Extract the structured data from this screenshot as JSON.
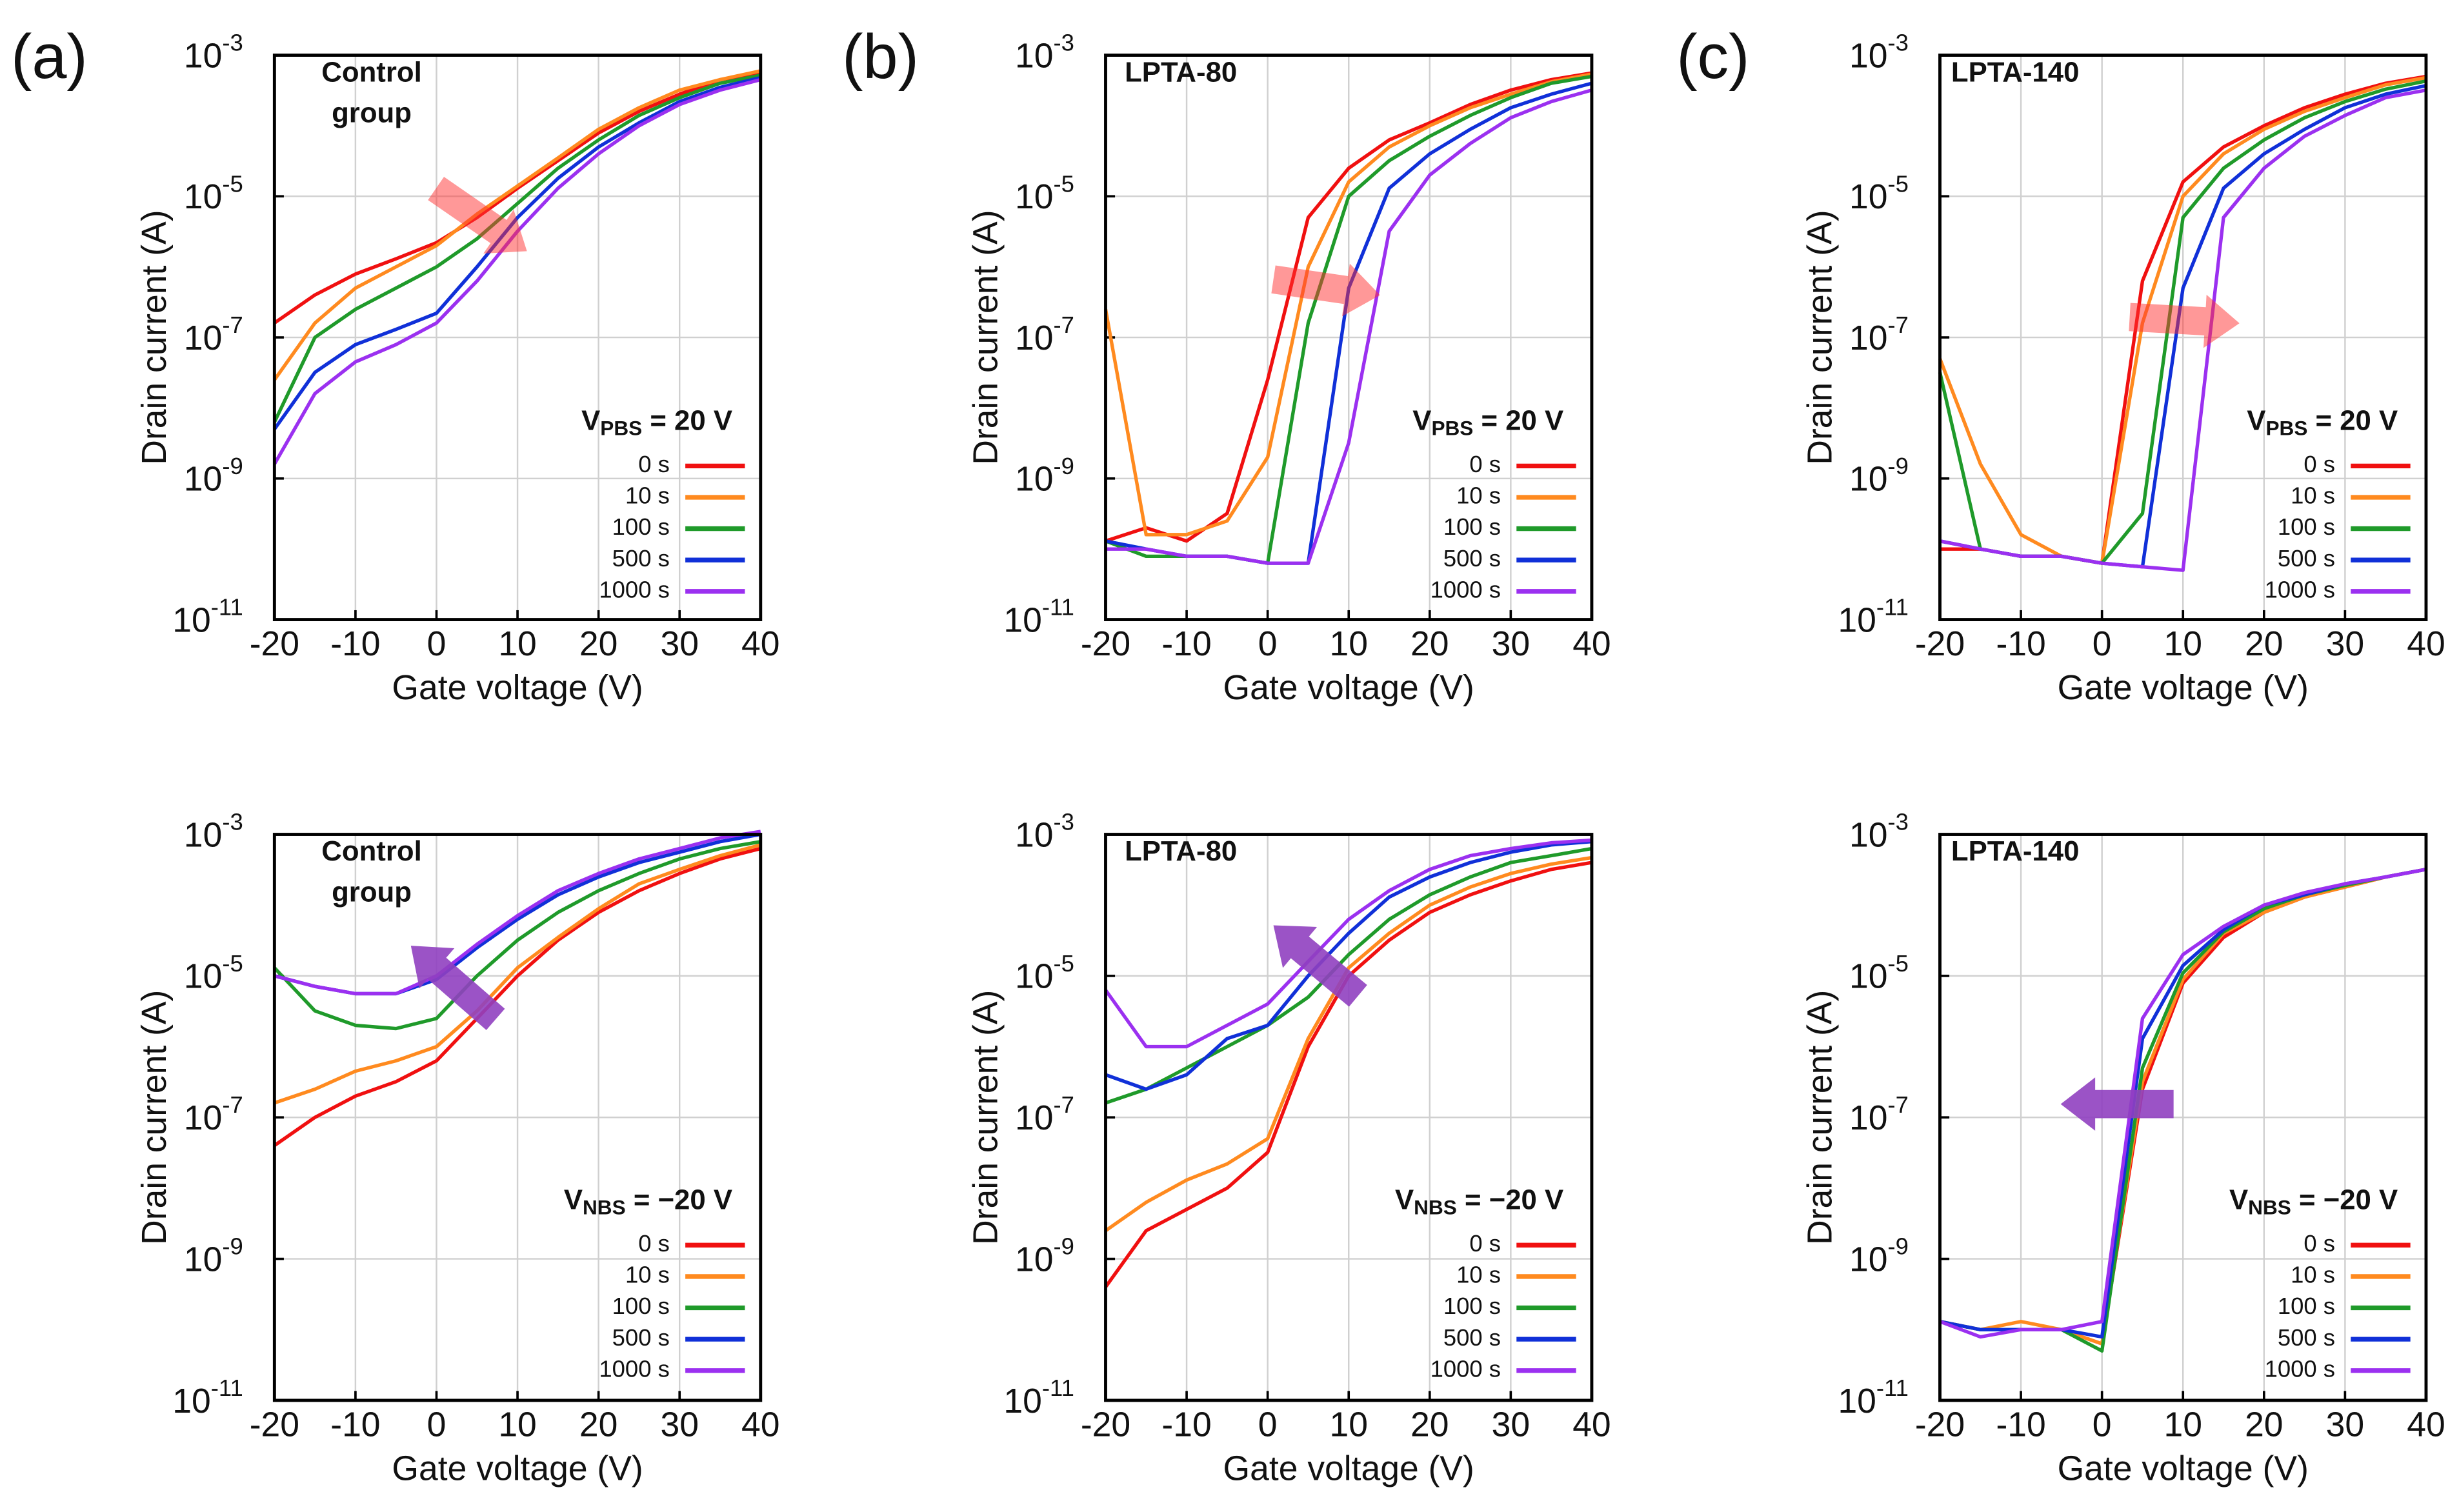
{
  "chart_data": [
    {
      "type": "line",
      "panel_label": "(a)",
      "annotation": [
        "Control",
        "group"
      ],
      "stress_label": {
        "main": "V",
        "sub": "PBS",
        "rest": " = 20 V"
      },
      "x_label": "Gate voltage (V)",
      "y_label": "Drain current (A)",
      "log_y": true,
      "grid": true,
      "xlim": [
        -20,
        40
      ],
      "xticks": [
        -20,
        -10,
        0,
        10,
        20,
        30,
        40
      ],
      "ylim": [
        1e-11,
        0.001
      ],
      "yticks": [
        {
          "value": 0.001,
          "label": "10",
          "exponent": "-3"
        },
        {
          "value": 1e-05,
          "label": "10",
          "exponent": "-5"
        },
        {
          "value": 1e-07,
          "label": "10",
          "exponent": "-7"
        },
        {
          "value": 1e-09,
          "label": "10",
          "exponent": "-9"
        },
        {
          "value": 1e-11,
          "label": "10",
          "exponent": "-11"
        }
      ],
      "x": [
        -20,
        -15,
        -10,
        -5,
        0,
        5,
        10,
        15,
        20,
        25,
        30,
        35,
        40
      ],
      "series": [
        {
          "name": "0 s",
          "color": "#f01010",
          "values": [
            1.6e-07,
            4e-07,
            7.9e-07,
            1.3e-06,
            2.2e-06,
            5e-06,
            1.3e-05,
            3.2e-05,
            7.9e-05,
            0.00016,
            0.00028,
            0.00045,
            0.00056
          ]
        },
        {
          "name": "10 s",
          "color": "#ff8a1f",
          "values": [
            2.5e-08,
            1.6e-07,
            5e-07,
            1e-06,
            2e-06,
            5.6e-06,
            1.4e-05,
            3.5e-05,
            8.9e-05,
            0.00018,
            0.00032,
            0.00045,
            0.0006
          ]
        },
        {
          "name": "100 s",
          "color": "#1f9a2a",
          "values": [
            6.3e-09,
            1e-07,
            2.5e-07,
            5e-07,
            1e-06,
            2.5e-06,
            7.9e-06,
            2.5e-05,
            6.3e-05,
            0.00014,
            0.00025,
            0.0004,
            0.00052
          ]
        },
        {
          "name": "500 s",
          "color": "#1030d8",
          "values": [
            5e-09,
            3.2e-08,
            7.9e-08,
            1.3e-07,
            2.2e-07,
            1e-06,
            5e-06,
            1.8e-05,
            5e-05,
            0.00011,
            0.00022,
            0.00035,
            0.00048
          ]
        },
        {
          "name": "1000 s",
          "color": "#9b30f0",
          "values": [
            1.6e-09,
            1.6e-08,
            4.5e-08,
            7.9e-08,
            1.6e-07,
            6.3e-07,
            3.2e-06,
            1.3e-05,
            4e-05,
            0.0001,
            0.0002,
            0.00032,
            0.00045
          ]
        }
      ]
    },
    {
      "type": "line",
      "panel_label": "(b)",
      "annotation": [
        "LPTA-80"
      ],
      "stress_label": {
        "main": "V",
        "sub": "PBS",
        "rest": " = 20 V"
      },
      "x_label": "Gate voltage (V)",
      "y_label": "Drain current (A)",
      "log_y": true,
      "grid": true,
      "xlim": [
        -20,
        40
      ],
      "xticks": [
        -20,
        -10,
        0,
        10,
        20,
        30,
        40
      ],
      "ylim": [
        1e-11,
        0.001
      ],
      "yticks": [
        {
          "value": 0.001,
          "label": "10",
          "exponent": "-3"
        },
        {
          "value": 1e-05,
          "label": "10",
          "exponent": "-5"
        },
        {
          "value": 1e-07,
          "label": "10",
          "exponent": "-7"
        },
        {
          "value": 1e-09,
          "label": "10",
          "exponent": "-9"
        },
        {
          "value": 1e-11,
          "label": "10",
          "exponent": "-11"
        }
      ],
      "x": [
        -20,
        -15,
        -10,
        -5,
        0,
        5,
        10,
        15,
        20,
        25,
        30,
        35,
        40
      ],
      "series": [
        {
          "name": "0 s",
          "color": "#f01010",
          "values": [
            1.3e-10,
            2e-10,
            1.3e-10,
            3.2e-10,
            2.5e-08,
            5e-06,
            2.5e-05,
            6.3e-05,
            0.00011,
            0.0002,
            0.00032,
            0.00045,
            0.00056
          ]
        },
        {
          "name": "10 s",
          "color": "#ff8a1f",
          "values": [
            2.5e-07,
            1.6e-10,
            1.6e-10,
            2.5e-10,
            2e-09,
            1e-06,
            1.6e-05,
            5e-05,
            0.0001,
            0.00018,
            0.00028,
            0.00042,
            0.00054
          ]
        },
        {
          "name": "100 s",
          "color": "#1f9a2a",
          "values": [
            1.3e-10,
            7.9e-11,
            7.9e-11,
            7.9e-11,
            6.3e-11,
            1.6e-07,
            1e-05,
            3.2e-05,
            7.1e-05,
            0.00014,
            0.00025,
            0.0004,
            0.0005
          ]
        },
        {
          "name": "500 s",
          "color": "#1030d8",
          "values": [
            1.3e-10,
            1e-10,
            7.9e-11,
            7.9e-11,
            6.3e-11,
            6.3e-11,
            5e-07,
            1.3e-05,
            4e-05,
            8.9e-05,
            0.00018,
            0.00028,
            0.0004
          ]
        },
        {
          "name": "1000 s",
          "color": "#9b30f0",
          "values": [
            1e-10,
            1e-10,
            7.9e-11,
            7.9e-11,
            6.3e-11,
            6.3e-11,
            3.2e-09,
            3.2e-06,
            2e-05,
            5.6e-05,
            0.00013,
            0.00022,
            0.00032
          ]
        }
      ]
    },
    {
      "type": "line",
      "panel_label": "(c)",
      "annotation": [
        "LPTA-140"
      ],
      "stress_label": {
        "main": "V",
        "sub": "PBS",
        "rest": " = 20 V"
      },
      "x_label": "Gate voltage (V)",
      "y_label": "Drain current (A)",
      "log_y": true,
      "grid": true,
      "xlim": [
        -20,
        40
      ],
      "xticks": [
        -20,
        -10,
        0,
        10,
        20,
        30,
        40
      ],
      "ylim": [
        1e-11,
        0.001
      ],
      "yticks": [
        {
          "value": 0.001,
          "label": "10",
          "exponent": "-3"
        },
        {
          "value": 1e-05,
          "label": "10",
          "exponent": "-5"
        },
        {
          "value": 1e-07,
          "label": "10",
          "exponent": "-7"
        },
        {
          "value": 1e-09,
          "label": "10",
          "exponent": "-9"
        },
        {
          "value": 1e-11,
          "label": "10",
          "exponent": "-11"
        }
      ],
      "x": [
        -20,
        -15,
        -10,
        -5,
        0,
        5,
        10,
        15,
        20,
        25,
        30,
        35,
        40
      ],
      "series": [
        {
          "name": "0 s",
          "color": "#f01010",
          "values": [
            1e-10,
            1e-10,
            7.9e-11,
            7.9e-11,
            6.3e-11,
            6.3e-07,
            1.6e-05,
            5e-05,
            0.0001,
            0.00018,
            0.00028,
            0.0004,
            0.0005
          ]
        },
        {
          "name": "10 s",
          "color": "#ff8a1f",
          "values": [
            5e-08,
            1.6e-09,
            1.6e-10,
            7.9e-11,
            6.3e-11,
            1.6e-07,
            1e-05,
            4e-05,
            8.9e-05,
            0.00016,
            0.00025,
            0.00038,
            0.00048
          ]
        },
        {
          "name": "100 s",
          "color": "#1f9a2a",
          "values": [
            3.2e-08,
            1e-10,
            7.9e-11,
            7.9e-11,
            6.3e-11,
            3.2e-10,
            5e-06,
            2.5e-05,
            6.3e-05,
            0.00013,
            0.00022,
            0.00033,
            0.00043
          ]
        },
        {
          "name": "500 s",
          "color": "#1030d8",
          "values": [
            1.3e-10,
            1e-10,
            7.9e-11,
            7.9e-11,
            6.3e-11,
            5.6e-11,
            5e-07,
            1.3e-05,
            4e-05,
            8.9e-05,
            0.00018,
            0.00028,
            0.00037
          ]
        },
        {
          "name": "1000 s",
          "color": "#9b30f0",
          "values": [
            1.3e-10,
            1e-10,
            7.9e-11,
            7.9e-11,
            6.3e-11,
            5.6e-11,
            5e-11,
            5e-06,
            2.5e-05,
            7.1e-05,
            0.00014,
            0.00025,
            0.00032
          ]
        }
      ]
    },
    {
      "type": "line",
      "annotation": [
        "Control",
        "group"
      ],
      "stress_label": {
        "main": "V",
        "sub": "NBS",
        "rest": " = −20 V"
      },
      "x_label": "Gate voltage (V)",
      "y_label": "Drain current (A)",
      "log_y": true,
      "grid": true,
      "xlim": [
        -20,
        40
      ],
      "xticks": [
        -20,
        -10,
        0,
        10,
        20,
        30,
        40
      ],
      "ylim": [
        1e-11,
        0.001
      ],
      "yticks": [
        {
          "value": 0.001,
          "label": "10",
          "exponent": "-3"
        },
        {
          "value": 1e-05,
          "label": "10",
          "exponent": "-5"
        },
        {
          "value": 1e-07,
          "label": "10",
          "exponent": "-7"
        },
        {
          "value": 1e-09,
          "label": "10",
          "exponent": "-9"
        },
        {
          "value": 1e-11,
          "label": "10",
          "exponent": "-11"
        }
      ],
      "x": [
        -20,
        -15,
        -10,
        -5,
        0,
        5,
        10,
        15,
        20,
        25,
        30,
        35,
        40
      ],
      "series": [
        {
          "name": "0 s",
          "color": "#f01010",
          "values": [
            4e-08,
            1e-07,
            2e-07,
            3.2e-07,
            6.3e-07,
            2.5e-06,
            1e-05,
            3.2e-05,
            7.9e-05,
            0.00016,
            0.00028,
            0.00045,
            0.00063
          ]
        },
        {
          "name": "10 s",
          "color": "#ff8a1f",
          "values": [
            1.6e-07,
            2.5e-07,
            4.5e-07,
            6.3e-07,
            1e-06,
            3.2e-06,
            1.3e-05,
            3.5e-05,
            8.9e-05,
            0.0002,
            0.00032,
            0.0005,
            0.00071
          ]
        },
        {
          "name": "100 s",
          "color": "#1f9a2a",
          "values": [
            1.3e-05,
            3.2e-06,
            2e-06,
            1.8e-06,
            2.5e-06,
            1e-05,
            3.2e-05,
            7.9e-05,
            0.00016,
            0.00028,
            0.00045,
            0.00063,
            0.00079
          ]
        },
        {
          "name": "500 s",
          "color": "#1030d8",
          "values": [
            1e-05,
            7.1e-06,
            5.6e-06,
            5.6e-06,
            8.9e-06,
            2.5e-05,
            6.3e-05,
            0.00014,
            0.00025,
            0.0004,
            0.00056,
            0.00079,
            0.001
          ]
        },
        {
          "name": "1000 s",
          "color": "#9b30f0",
          "values": [
            1e-05,
            7.1e-06,
            5.6e-06,
            5.6e-06,
            1e-05,
            2.8e-05,
            7.1e-05,
            0.00016,
            0.00028,
            0.00045,
            0.00063,
            0.00089,
            0.0011
          ]
        }
      ]
    },
    {
      "type": "line",
      "annotation": [
        "LPTA-80"
      ],
      "stress_label": {
        "main": "V",
        "sub": "NBS",
        "rest": " = −20 V"
      },
      "x_label": "Gate voltage (V)",
      "y_label": "Drain current (A)",
      "log_y": true,
      "grid": true,
      "xlim": [
        -20,
        40
      ],
      "xticks": [
        -20,
        -10,
        0,
        10,
        20,
        30,
        40
      ],
      "ylim": [
        1e-11,
        0.001
      ],
      "yticks": [
        {
          "value": 0.001,
          "label": "10",
          "exponent": "-3"
        },
        {
          "value": 1e-05,
          "label": "10",
          "exponent": "-5"
        },
        {
          "value": 1e-07,
          "label": "10",
          "exponent": "-7"
        },
        {
          "value": 1e-09,
          "label": "10",
          "exponent": "-9"
        },
        {
          "value": 1e-11,
          "label": "10",
          "exponent": "-11"
        }
      ],
      "x": [
        -20,
        -15,
        -10,
        -5,
        0,
        5,
        10,
        15,
        20,
        25,
        30,
        35,
        40
      ],
      "series": [
        {
          "name": "0 s",
          "color": "#f01010",
          "values": [
            4e-10,
            2.5e-09,
            5e-09,
            1e-08,
            3.2e-08,
            1e-06,
            1e-05,
            3.2e-05,
            7.9e-05,
            0.00014,
            0.00022,
            0.00032,
            0.0004
          ]
        },
        {
          "name": "10 s",
          "color": "#ff8a1f",
          "values": [
            2.5e-09,
            6.3e-09,
            1.3e-08,
            2.2e-08,
            5e-08,
            1.3e-06,
            1.3e-05,
            4e-05,
            0.0001,
            0.00018,
            0.00028,
            0.00038,
            0.00047
          ]
        },
        {
          "name": "100 s",
          "color": "#1f9a2a",
          "values": [
            1.6e-07,
            2.5e-07,
            5e-07,
            1e-06,
            2e-06,
            5e-06,
            2e-05,
            6.3e-05,
            0.00014,
            0.00025,
            0.0004,
            0.0005,
            0.00063
          ]
        },
        {
          "name": "500 s",
          "color": "#1030d8",
          "values": [
            4e-07,
            2.5e-07,
            4e-07,
            1.3e-06,
            2e-06,
            1e-05,
            4e-05,
            0.00013,
            0.00025,
            0.0004,
            0.00056,
            0.00071,
            0.00079
          ]
        },
        {
          "name": "1000 s",
          "color": "#9b30f0",
          "values": [
            6.3e-06,
            1e-06,
            1e-06,
            2e-06,
            4e-06,
            1.6e-05,
            6.3e-05,
            0.00016,
            0.00032,
            0.0005,
            0.00063,
            0.00076,
            0.00083
          ]
        }
      ]
    },
    {
      "type": "line",
      "annotation": [
        "LPTA-140"
      ],
      "stress_label": {
        "main": "V",
        "sub": "NBS",
        "rest": " = −20 V"
      },
      "x_label": "Gate voltage (V)",
      "y_label": "Drain current (A)",
      "log_y": true,
      "grid": true,
      "xlim": [
        -20,
        40
      ],
      "xticks": [
        -20,
        -10,
        0,
        10,
        20,
        30,
        40
      ],
      "ylim": [
        1e-11,
        0.001
      ],
      "yticks": [
        {
          "value": 0.001,
          "label": "10",
          "exponent": "-3"
        },
        {
          "value": 1e-05,
          "label": "10",
          "exponent": "-5"
        },
        {
          "value": 1e-07,
          "label": "10",
          "exponent": "-7"
        },
        {
          "value": 1e-09,
          "label": "10",
          "exponent": "-9"
        },
        {
          "value": 1e-11,
          "label": "10",
          "exponent": "-11"
        }
      ],
      "x": [
        -20,
        -15,
        -10,
        -5,
        0,
        5,
        10,
        15,
        20,
        25,
        30,
        35,
        40
      ],
      "series": [
        {
          "name": "0 s",
          "color": "#f01010",
          "values": [
            1.3e-10,
            1e-10,
            1e-10,
            1e-10,
            6.3e-11,
            2.5e-07,
            7.9e-06,
            3.5e-05,
            7.9e-05,
            0.00013,
            0.00018,
            0.00025,
            0.00032
          ]
        },
        {
          "name": "10 s",
          "color": "#ff8a1f",
          "values": [
            1.3e-10,
            1e-10,
            1.3e-10,
            1e-10,
            6.3e-11,
            3.2e-07,
            8.9e-06,
            4e-05,
            7.9e-05,
            0.00013,
            0.00018,
            0.00025,
            0.00032
          ]
        },
        {
          "name": "100 s",
          "color": "#1f9a2a",
          "values": [
            1.3e-10,
            1e-10,
            1e-10,
            1e-10,
            5e-11,
            5e-07,
            1.1e-05,
            4.2e-05,
            8.9e-05,
            0.00014,
            0.00019,
            0.00025,
            0.00032
          ]
        },
        {
          "name": "500 s",
          "color": "#1030d8",
          "values": [
            1.3e-10,
            1e-10,
            1e-10,
            1e-10,
            7.9e-11,
            1.3e-06,
            1.4e-05,
            4.5e-05,
            0.0001,
            0.00014,
            0.0002,
            0.00025,
            0.00032
          ]
        },
        {
          "name": "1000 s",
          "color": "#9b30f0",
          "values": [
            1.3e-10,
            7.9e-11,
            1e-10,
            1e-10,
            1.3e-10,
            2.5e-06,
            2e-05,
            5e-05,
            0.0001,
            0.00015,
            0.0002,
            0.00025,
            0.00032
          ]
        }
      ]
    }
  ]
}
